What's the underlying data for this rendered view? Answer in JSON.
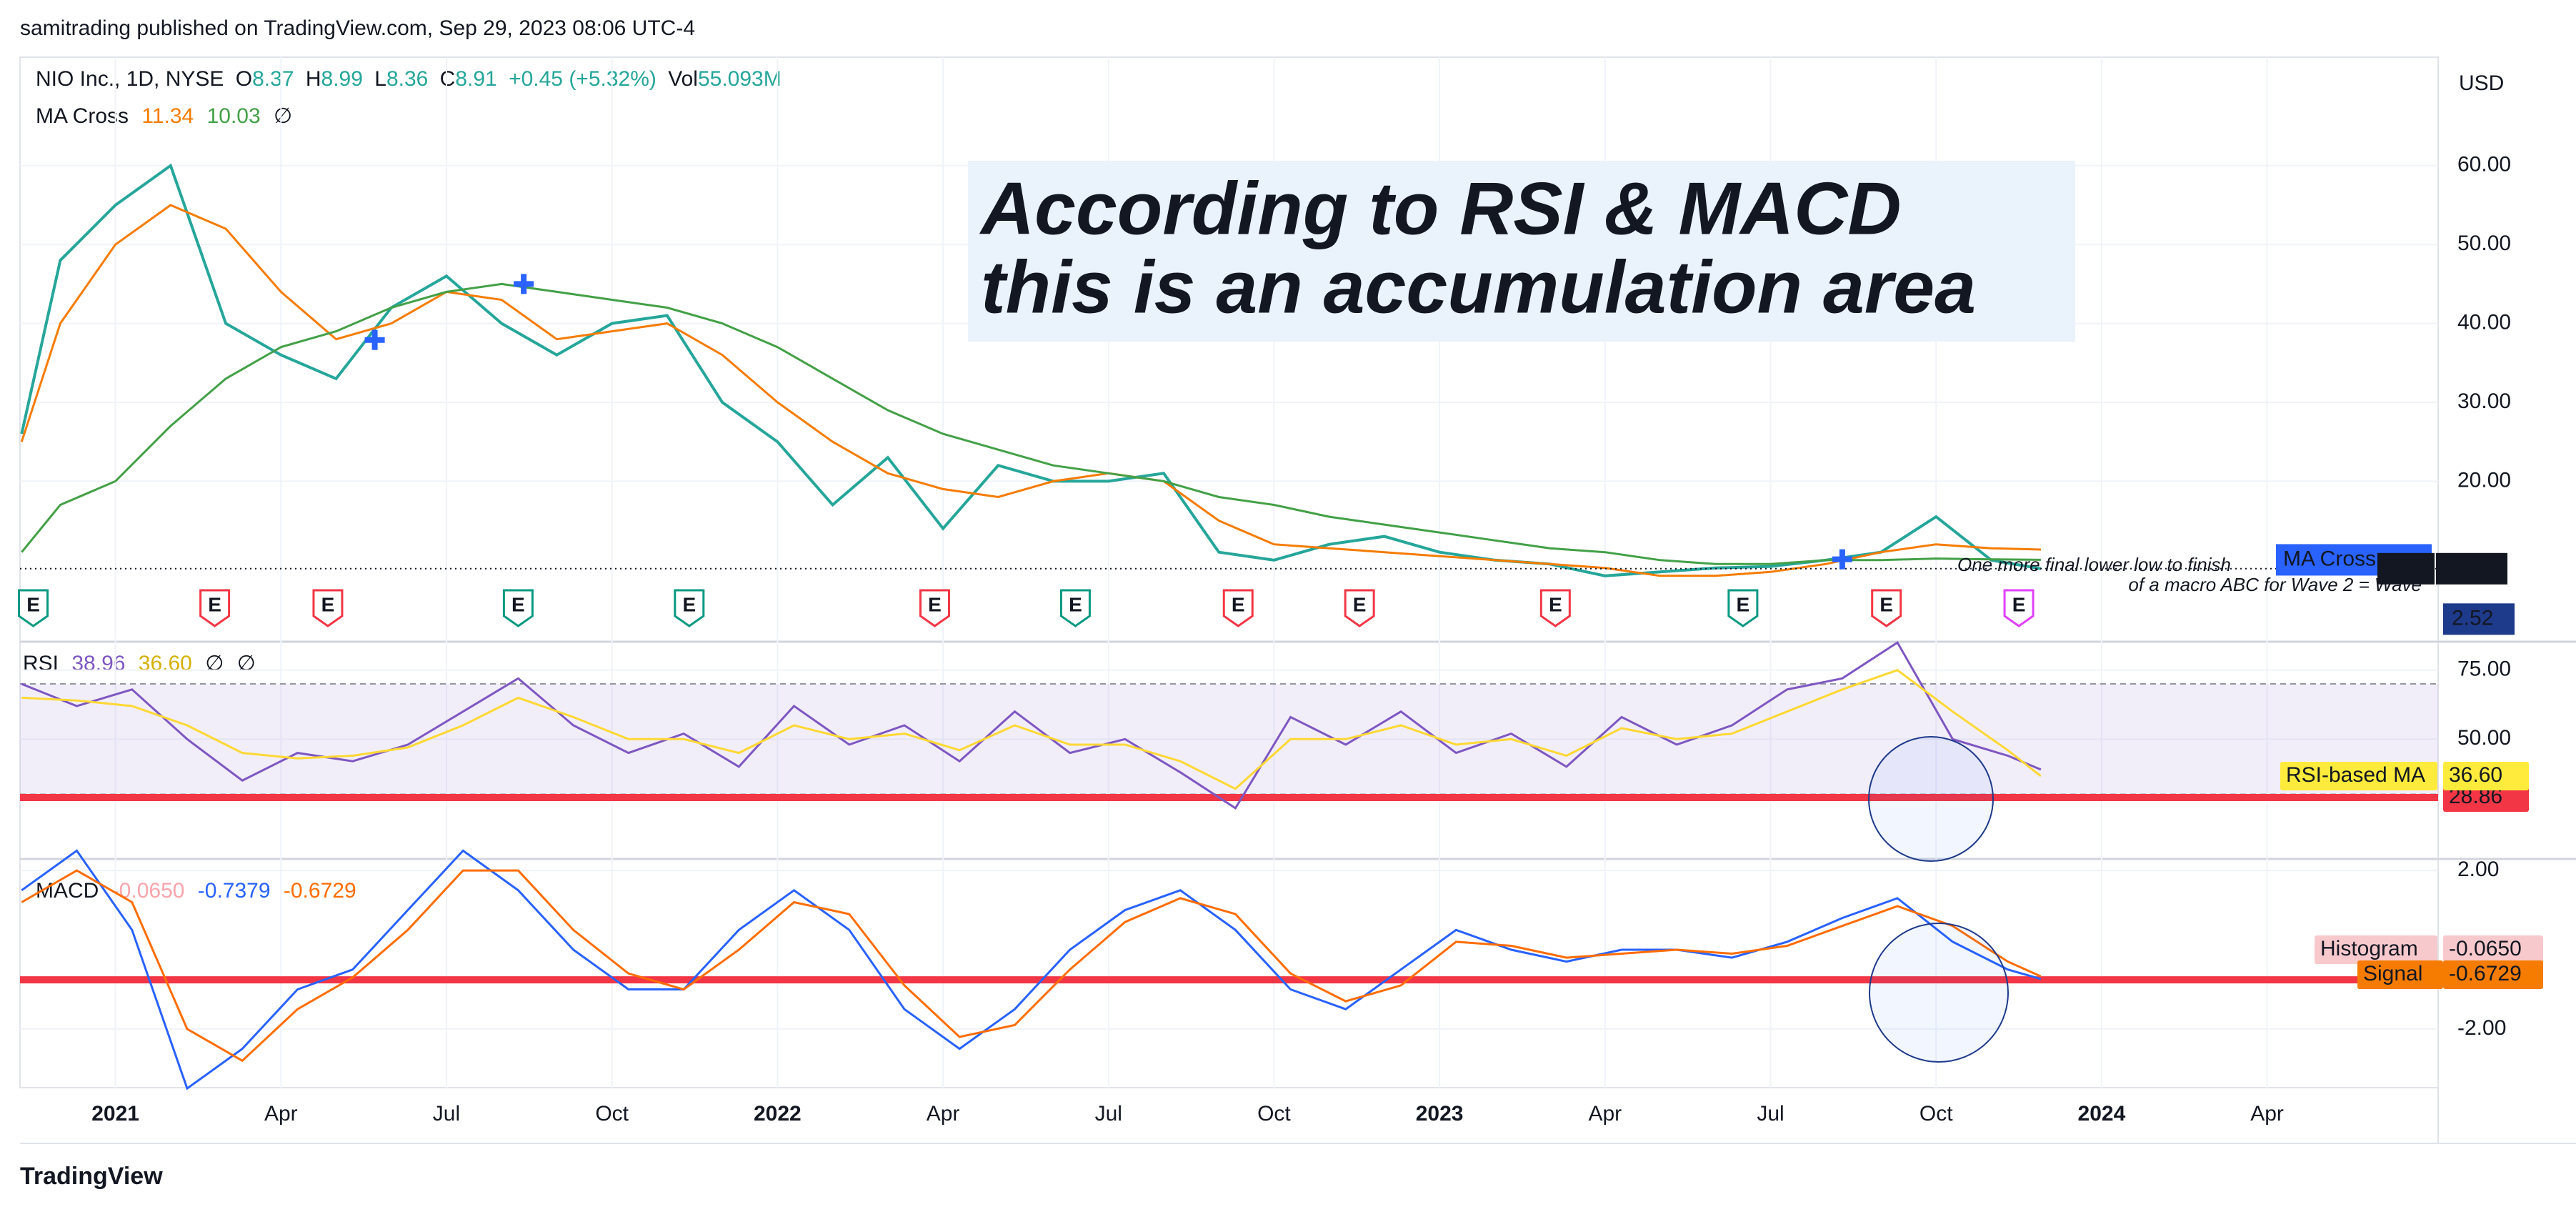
{
  "header": "samitrading published on TradingView.com, Sep 29, 2023 08:06 UTC-4",
  "footer": "TradingView",
  "currency": "USD",
  "xlim": [
    -1.73,
    42.1
  ],
  "xticks": [
    {
      "value": 0,
      "label": "2021"
    },
    {
      "value": 3,
      "label": "Apr"
    },
    {
      "value": 6,
      "label": "Jul"
    },
    {
      "value": 9,
      "label": "Oct"
    },
    {
      "value": 12,
      "label": "2022"
    },
    {
      "value": 15,
      "label": "Apr"
    },
    {
      "value": 18,
      "label": "Jul"
    },
    {
      "value": 21,
      "label": "Oct"
    },
    {
      "value": 24,
      "label": "2023"
    },
    {
      "value": 27,
      "label": "Apr"
    },
    {
      "value": 30,
      "label": "Jul"
    },
    {
      "value": 33,
      "label": "Oct"
    },
    {
      "value": 36,
      "label": "2024"
    },
    {
      "value": 39,
      "label": "Apr"
    }
  ],
  "chart_data": [
    {
      "type": "line",
      "panel": "price",
      "legend": {
        "symbol": "NIO Inc., 1D, NYSE",
        "o_label": "O",
        "o": "8.37",
        "h_label": "H",
        "h": "8.99",
        "l_label": "L",
        "l": "8.36",
        "c_label": "C",
        "c": "8.91",
        "change": "+0.45 (+5.32%)",
        "vol_label": "Vol",
        "vol": "55.093M",
        "ma_name": "MA Cross",
        "ma_fast": "11.34",
        "ma_slow": "10.03",
        "ma_icon": "∅"
      },
      "annotation": [
        "According to RSI & MACD",
        "this is an accumulation area"
      ],
      "note": [
        "One more final lower low to finish",
        "of a macro ABC for Wave 2 = Wave"
      ],
      "ylim": [
        0.83,
        73.75
      ],
      "yticks": [
        {
          "value": 60,
          "label": "60.00"
        },
        {
          "value": 50,
          "label": "50.00"
        },
        {
          "value": 40,
          "label": "40.00"
        },
        {
          "value": 30,
          "label": "30.00"
        },
        {
          "value": 20,
          "label": "20.00"
        }
      ],
      "x": [
        -1.7,
        -1,
        0,
        1,
        2,
        3,
        4,
        5,
        6,
        7,
        8,
        9,
        10,
        11,
        12,
        13,
        14,
        15,
        16,
        17,
        18,
        19,
        20,
        21,
        22,
        23,
        24,
        25,
        26,
        27,
        28,
        29,
        30,
        31,
        32,
        33,
        34,
        34.9
      ],
      "series": [
        {
          "name": "NIO",
          "color": "#26a69a",
          "values": [
            26,
            48,
            55,
            60,
            40,
            36,
            33,
            42,
            46,
            40,
            36,
            40,
            41,
            30,
            25,
            17,
            23,
            14,
            22,
            20,
            20,
            21,
            11,
            10,
            12,
            13,
            11,
            10,
            9.5,
            8,
            8.5,
            9,
            9.2,
            10,
            11,
            15.5,
            10,
            8.91
          ],
          "value_labels": {
            "37": "8.91"
          }
        },
        {
          "name": "MA Cross",
          "color": "#f57c00",
          "values": [
            25,
            40,
            50,
            55,
            52,
            44,
            38,
            40,
            44,
            43,
            38,
            39,
            40,
            36,
            30,
            25,
            21,
            19,
            18,
            20,
            21,
            20,
            15,
            12,
            11.5,
            11,
            10.5,
            10,
            9.5,
            9,
            8,
            8,
            8.5,
            9.5,
            11,
            12,
            11.5,
            11.34
          ]
        },
        {
          "name": "MA Cross",
          "color": "#43a047",
          "values": [
            11,
            17,
            20,
            27,
            33,
            37,
            39,
            42,
            44,
            45,
            44,
            43,
            42,
            40,
            37,
            33,
            29,
            26,
            24,
            22,
            21,
            20,
            18,
            17,
            15.5,
            14.5,
            13.5,
            12.5,
            11.5,
            11,
            10,
            9.5,
            9.5,
            10,
            10,
            10.2,
            10.1,
            10.03
          ]
        }
      ],
      "cross_markers": {
        "x": [
          4.7,
          7.4,
          31.3
        ],
        "values": [
          37.9,
          45,
          10.1
        ],
        "color": "#2962ff"
      },
      "earnings": [
        {
          "x": -1.49,
          "label": "E",
          "color": "#089981"
        },
        {
          "x": 1.8,
          "label": "E",
          "color": "#f23645"
        },
        {
          "x": 3.85,
          "label": "E",
          "color": "#f23645"
        },
        {
          "x": 7.3,
          "label": "E",
          "color": "#089981"
        },
        {
          "x": 10.4,
          "label": "E",
          "color": "#089981"
        },
        {
          "x": 14.85,
          "label": "E",
          "color": "#f23645"
        },
        {
          "x": 17.4,
          "label": "E",
          "color": "#089981"
        },
        {
          "x": 20.35,
          "label": "E",
          "color": "#f23645"
        },
        {
          "x": 22.55,
          "label": "E",
          "color": "#f23645"
        },
        {
          "x": 26.1,
          "label": "E",
          "color": "#f23645"
        },
        {
          "x": 29.5,
          "label": "E",
          "color": "#089981"
        },
        {
          "x": 32.1,
          "label": "E",
          "color": "#f23645"
        },
        {
          "x": 34.5,
          "label": "E",
          "color": "#e040fb"
        }
      ],
      "price_tags": [
        {
          "label": "MA Cross",
          "value": 10.03,
          "color": "#2962ff"
        },
        {
          "label": "2.52",
          "value": 2.52,
          "color": "#1e3a8a"
        }
      ]
    },
    {
      "type": "line",
      "panel": "rsi",
      "legend": {
        "name": "RSI",
        "rsi": "38.96",
        "ma": "36.60",
        "icon1": "∅",
        "icon2": "∅"
      },
      "ylim": [
        7.1,
        82.7
      ],
      "yticks": [
        {
          "value": 75,
          "label": "75.00"
        },
        {
          "value": 50,
          "label": "50.00"
        }
      ],
      "band": [
        30,
        70
      ],
      "hline": {
        "value": 28.86,
        "label": "28.86",
        "color": "#f23645"
      },
      "ma_tag": {
        "label": "RSI-based MA",
        "value": "36.60"
      },
      "x": [
        -1.7,
        -0.7,
        0.3,
        1.3,
        2.3,
        3.3,
        4.3,
        5.3,
        6.3,
        7.3,
        8.3,
        9.3,
        10.3,
        11.3,
        12.3,
        13.3,
        14.3,
        15.3,
        16.3,
        17.3,
        18.3,
        19.3,
        20.3,
        21.3,
        22.3,
        23.3,
        24.3,
        25.3,
        26.3,
        27.3,
        28.3,
        29.3,
        30.3,
        31.3,
        32.3,
        33.3,
        34.3,
        34.9
      ],
      "series": [
        {
          "name": "RSI",
          "color": "#7e57c2",
          "values": [
            70,
            62,
            68,
            50,
            35,
            45,
            42,
            48,
            60,
            72,
            55,
            45,
            52,
            40,
            62,
            48,
            55,
            42,
            60,
            45,
            50,
            38,
            25,
            58,
            48,
            60,
            45,
            52,
            40,
            58,
            48,
            55,
            68,
            72,
            85,
            50,
            44,
            38.96
          ]
        },
        {
          "name": "RSI-based MA",
          "color": "#fdd835",
          "values": [
            65,
            64,
            62,
            55,
            45,
            43,
            44,
            47,
            55,
            65,
            58,
            50,
            50,
            45,
            55,
            50,
            52,
            46,
            55,
            48,
            48,
            42,
            32,
            50,
            50,
            55,
            48,
            50,
            44,
            54,
            50,
            52,
            60,
            68,
            75,
            60,
            46,
            36.6
          ]
        }
      ]
    },
    {
      "type": "line",
      "panel": "macd",
      "legend": {
        "name": "MACD",
        "hist": "-0.0650",
        "macd": "-0.7379",
        "signal": "-0.6729"
      },
      "ylim": [
        -3.48,
        2.29
      ],
      "yticks": [
        {
          "value": 2,
          "label": "2.00"
        },
        {
          "value": -2,
          "label": "-2.00"
        }
      ],
      "hline": {
        "value": -0.76,
        "color": "#f23645"
      },
      "tags": [
        {
          "label": "Histogram",
          "value": "-0.0650",
          "color": "#f8c9cc"
        },
        {
          "label": "Signal",
          "value": "-0.6729",
          "color": "#f57c00"
        }
      ],
      "x": [
        -1.7,
        -0.7,
        0.3,
        1.3,
        2.3,
        3.3,
        4.3,
        5.3,
        6.3,
        7.3,
        8.3,
        9.3,
        10.3,
        11.3,
        12.3,
        13.3,
        14.3,
        15.3,
        16.3,
        17.3,
        18.3,
        19.3,
        20.3,
        21.3,
        22.3,
        23.3,
        24.3,
        25.3,
        26.3,
        27.3,
        28.3,
        29.3,
        30.3,
        31.3,
        32.3,
        33.3,
        34.3,
        34.9
      ],
      "series": [
        {
          "name": "MACD",
          "color": "#2962ff",
          "values": [
            1.5,
            2.5,
            0.5,
            -3.5,
            -2.5,
            -1,
            -0.5,
            1,
            2.5,
            1.5,
            0,
            -1,
            -1,
            0.5,
            1.5,
            0.5,
            -1.5,
            -2.5,
            -1.5,
            0,
            1,
            1.5,
            0.5,
            -1,
            -1.5,
            -0.5,
            0.5,
            0,
            -0.3,
            0,
            0,
            -0.2,
            0.2,
            0.8,
            1.3,
            0.2,
            -0.5,
            -0.7379
          ]
        },
        {
          "name": "Signal",
          "color": "#ff6d00",
          "values": [
            1.2,
            2,
            1.2,
            -2,
            -2.8,
            -1.5,
            -0.7,
            0.5,
            2,
            2,
            0.5,
            -0.6,
            -1,
            0,
            1.2,
            0.9,
            -0.9,
            -2.2,
            -1.9,
            -0.5,
            0.7,
            1.3,
            0.9,
            -0.6,
            -1.3,
            -0.9,
            0.2,
            0.1,
            -0.2,
            -0.1,
            0,
            -0.1,
            0.1,
            0.6,
            1.1,
            0.6,
            -0.3,
            -0.6729
          ]
        }
      ]
    }
  ]
}
